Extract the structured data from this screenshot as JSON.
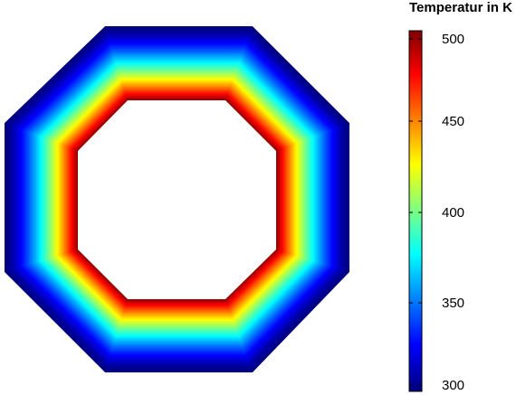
{
  "colorbar": {
    "title": "Temperatur in K",
    "ticks": [
      "500",
      "450",
      "400",
      "350",
      "300"
    ],
    "min": 300,
    "max": 500
  },
  "colormap": [
    "#00007f",
    "#0000ff",
    "#00ffff",
    "#ffff00",
    "#ff0000",
    "#7f0000"
  ],
  "field": {
    "inner_temperature": 500,
    "outer_temperature": 300
  }
}
